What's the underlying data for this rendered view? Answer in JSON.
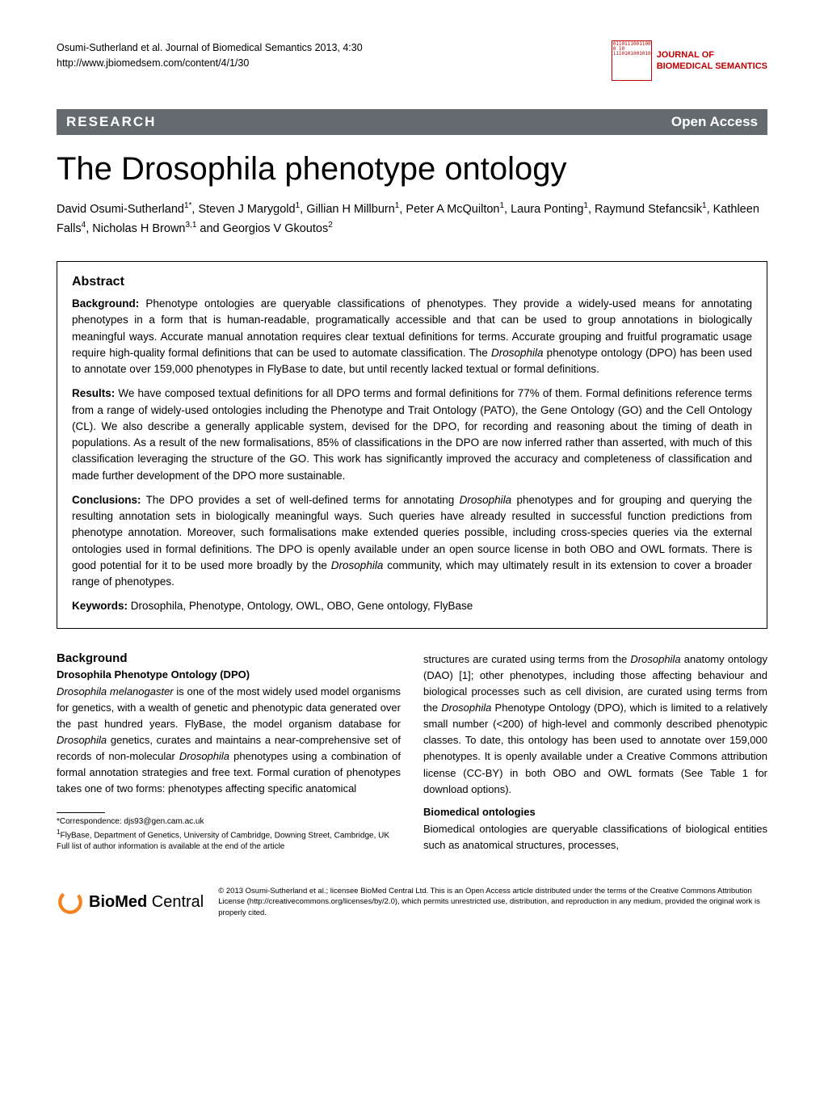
{
  "header": {
    "citation": "Osumi-Sutherland et al. Journal of Biomedical Semantics 2013, 4:30",
    "url": "http://www.jbiomedsem.com/content/4/1/30",
    "journal_name_line1": "JOURNAL OF",
    "journal_name_line2": "BIOMEDICAL SEMANTICS",
    "icon_digits": "01101110011001010010010001010     0    10       1110101001010000111001100010111"
  },
  "banner": {
    "left": "RESEARCH",
    "right": "Open Access"
  },
  "title": "The Drosophila phenotype ontology",
  "authors_html": "David Osumi-Sutherland<sup>1*</sup>, Steven J Marygold<sup>1</sup>, Gillian H Millburn<sup>1</sup>, Peter A McQuilton<sup>1</sup>, Laura Ponting<sup>1</sup>, Raymund Stefancsik<sup>1</sup>, Kathleen Falls<sup>4</sup>, Nicholas H Brown<sup>3,1</sup> and Georgios V Gkoutos<sup>2</sup>",
  "abstract": {
    "heading": "Abstract",
    "background_label": "Background:",
    "background_text": "Phenotype ontologies are queryable classifications of phenotypes. They provide a widely-used means for annotating phenotypes in a form that is human-readable, programatically accessible and that can be used to group annotations in biologically meaningful ways. Accurate manual annotation requires clear textual definitions for terms. Accurate grouping and fruitful programatic usage require high-quality formal definitions that can be used to automate classification. The <em>Drosophila</em> phenotype ontology (DPO) has been used to annotate over 159,000 phenotypes in FlyBase to date, but until recently lacked textual or formal definitions.",
    "results_label": "Results:",
    "results_text": "We have composed textual definitions for all DPO terms and formal definitions for 77% of them. Formal definitions reference terms from a range of widely-used ontologies including the Phenotype and Trait Ontology (PATO), the Gene Ontology (GO) and the Cell Ontology (CL). We also describe a generally applicable system, devised for the DPO, for recording and reasoning about the timing of death in populations. As a result of the new formalisations, 85% of classifications in the DPO are now inferred rather than asserted, with much of this classification leveraging the structure of the GO. This work has significantly improved the accuracy and completeness of classification and made further development of the DPO more sustainable.",
    "conclusions_label": "Conclusions:",
    "conclusions_text": "The DPO provides a set of well-defined terms for annotating <em>Drosophila</em> phenotypes and for grouping and querying the resulting annotation sets in biologically meaningful ways. Such queries have already resulted in successful function predictions from phenotype annotation. Moreover, such formalisations make extended queries possible, including cross-species queries via the external ontologies used in formal definitions. The DPO is openly available under an open source license in both OBO and OWL formats. There is good potential for it to be used more broadly by the <em>Drosophila</em> community, which may ultimately result in its extension to cover a broader range of phenotypes.",
    "keywords_label": "Keywords:",
    "keywords_text": "Drosophila, Phenotype, Ontology, OWL, OBO, Gene ontology, FlyBase"
  },
  "body": {
    "section_title": "Background",
    "sub1_title": "Drosophila Phenotype Ontology (DPO)",
    "col1_para": "<em>Drosophila melanogaster</em> is one of the most widely used model organisms for genetics, with a wealth of genetic and phenotypic data generated over the past hundred years. FlyBase, the model organism database for <em>Drosophila</em> genetics, curates and maintains a near-comprehensive set of records of non-molecular <em>Drosophila</em> phenotypes using a combination of formal annotation strategies and free text. Formal curation of phenotypes takes one of two forms: phenotypes affecting specific anatomical",
    "col2_para1": "structures are curated using terms from the <em>Drosophila</em> anatomy ontology (DAO) [1]; other phenotypes, including those affecting behaviour and biological processes such as cell division, are curated using terms from the <em>Drosophila</em> Phenotype Ontology (DPO), which is limited to a relatively small number (<200) of high-level and commonly described phenotypic classes. To date, this ontology has been used to annotate over 159,000 phenotypes. It is openly available under a Creative Commons attribution license (CC-BY) in both OBO and OWL formats (See Table 1 for download options).",
    "sub2_title": "Biomedical ontologies",
    "col2_para2": "Biomedical ontologies are queryable classifications of biological entities such as anatomical structures, processes,"
  },
  "footnotes": {
    "correspondence": "*Correspondence: djs93@gen.cam.ac.uk",
    "affil1": "<sup>1</sup>FlyBase, Department of Genetics, University of Cambridge, Downing Street, Cambridge, UK",
    "full_list": "Full list of author information is available at the end of the article"
  },
  "footer": {
    "logo_text_bold": "BioMed",
    "logo_text_light": " Central",
    "license": "© 2013 Osumi-Sutherland et al.; licensee BioMed Central Ltd. This is an Open Access article distributed under the terms of the Creative Commons Attribution License (http://creativecommons.org/licenses/by/2.0), which permits unrestricted use, distribution, and reproduction in any medium, provided the original work is properly cited."
  },
  "colors": {
    "banner_bg": "#636b6e",
    "brand_red": "#c00000",
    "logo_orange": "#f58220",
    "text": "#000000"
  }
}
